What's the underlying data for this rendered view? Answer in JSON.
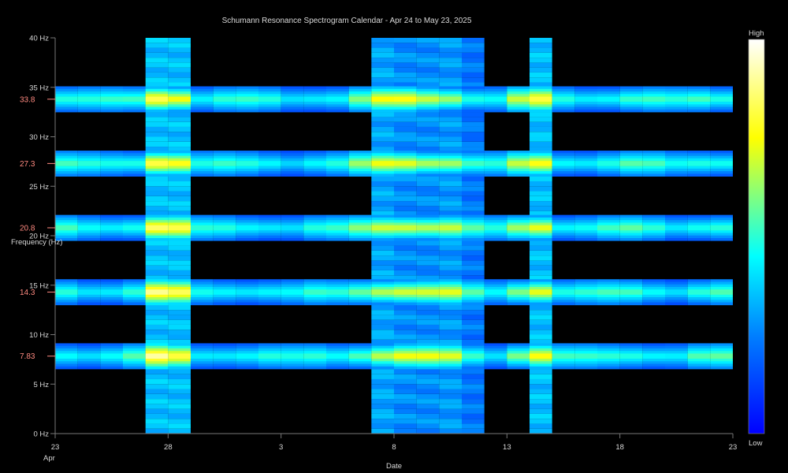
{
  "chart_data": {
    "type": "heatmap",
    "title": "Schumann Resonance Spectrogram Calendar - Apr 24 to May 23, 2025",
    "xlabel": "Date",
    "ylabel": "Frequency (Hz)",
    "ylim": [
      0,
      40
    ],
    "y_ticks": [
      "0 Hz",
      "5 Hz",
      "10 Hz",
      "15 Hz",
      "20 Hz",
      "25 Hz",
      "30 Hz",
      "35 Hz",
      "40 Hz"
    ],
    "y_tick_values": [
      0,
      5,
      10,
      15,
      20,
      25,
      30,
      35,
      40
    ],
    "x_ticks": [
      "23",
      "28",
      "3",
      "8",
      "13",
      "18",
      "23"
    ],
    "x_tick_month": "Apr",
    "x_tick_day_offsets": [
      0,
      5,
      10,
      15,
      20,
      25,
      30
    ],
    "resonance_labels": [
      "33.8",
      "27.3",
      "20.8",
      "14.3",
      "7.83"
    ],
    "resonance_freqs": [
      33.8,
      27.3,
      20.8,
      14.3,
      7.83
    ],
    "days": [
      "Apr 24",
      "Apr 25",
      "Apr 26",
      "Apr 27",
      "Apr 28",
      "Apr 29",
      "Apr 30",
      "May 1",
      "May 2",
      "May 3",
      "May 4",
      "May 5",
      "May 6",
      "May 7",
      "May 8",
      "May 9",
      "May 10",
      "May 11",
      "May 12",
      "May 13",
      "May 14",
      "May 15",
      "May 16",
      "May 17",
      "May 18",
      "May 19",
      "May 20",
      "May 21",
      "May 22",
      "May 23"
    ],
    "band_intensity": [
      0.52,
      0.48,
      0.5,
      0.55,
      0.92,
      0.84,
      0.48,
      0.5,
      0.5,
      0.5,
      0.46,
      0.5,
      0.5,
      0.62,
      0.75,
      0.78,
      0.74,
      0.72,
      0.55,
      0.48,
      0.68,
      0.82,
      0.52,
      0.5,
      0.52,
      0.55,
      0.52,
      0.48,
      0.55,
      0.55
    ],
    "background_intensity": [
      0,
      0,
      0,
      0,
      0.3,
      0.3,
      0,
      0,
      0,
      0,
      0,
      0,
      0,
      0,
      0.26,
      0.22,
      0.22,
      0.24,
      0.18,
      0,
      0,
      0.3,
      0,
      0,
      0,
      0,
      0,
      0,
      0,
      0
    ],
    "colorbar": {
      "high_label": "High",
      "low_label": "Low",
      "colorscale": "jet"
    },
    "grid": false
  }
}
